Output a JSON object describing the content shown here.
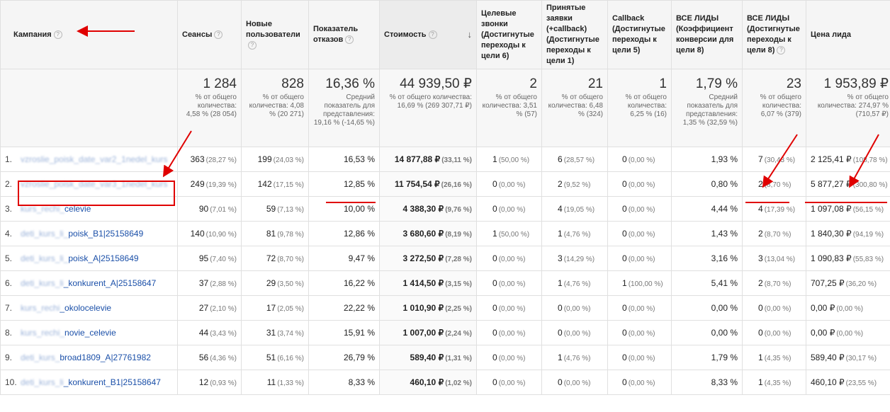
{
  "columns": [
    {
      "label": "Кампания",
      "help": "?"
    },
    {
      "label": "Сеансы",
      "help": "?"
    },
    {
      "label": "Новые пользователи",
      "help": "?"
    },
    {
      "label": "Показатель отказов",
      "help": "?"
    },
    {
      "label": "Стоимость",
      "help": "?"
    },
    {
      "label": "Целевые звонки (Достигнутые переходы к цели 6)",
      "help": "?"
    },
    {
      "label": "Принятые заявки (+callback) (Достигнутые переходы к цели 1)",
      "help": "?"
    },
    {
      "label": "Callback (Достигнутые переходы к цели 5)",
      "help": "?"
    },
    {
      "label": "ВСЕ ЛИДЫ (Коэффициент конверсии для цели 8)",
      "help": "?"
    },
    {
      "label": "ВСЕ ЛИДЫ (Достигнутые переходы к цели 8)",
      "help": "?"
    },
    {
      "label": "Цена лида",
      "help": ""
    }
  ],
  "sort_arrow": "↓",
  "totals": [
    {
      "value": "1 284",
      "sub": "% от общего количества: 4,58 % (28 054)"
    },
    {
      "value": "828",
      "sub": "% от общего количества: 4,08 % (20 271)"
    },
    {
      "value": "16,36 %",
      "sub": "Средний показатель для представления: 19,16 % (-14,65 %)"
    },
    {
      "value": "44 939,50 ₽",
      "sub": "% от общего количества: 16,69 % (269 307,71 ₽)"
    },
    {
      "value": "2",
      "sub": "% от общего количества: 3,51 % (57)"
    },
    {
      "value": "21",
      "sub": "% от общего количества: 6,48 % (324)"
    },
    {
      "value": "1",
      "sub": "% от общего количества: 6,25 % (16)"
    },
    {
      "value": "1,79 %",
      "sub": "Средний показатель для представления: 1,35 % (32,59 %)"
    },
    {
      "value": "23",
      "sub": "% от общего количества: 6,07 % (379)"
    },
    {
      "value": "1 953,89 ₽",
      "sub": "% от общего количества: 274,97 % (710,57 ₽)"
    }
  ],
  "rows": [
    {
      "n": "1.",
      "c1": "vzroslie_poisk_date_var2_1nedel_kurs",
      "c2": "",
      "s": "363",
      "sp": "(28,27 %)",
      "u": "199",
      "up": "(24,03 %)",
      "b": "16,53 %",
      "cost": "14 877,88 ₽",
      "cp": "(33,11 %)",
      "g6": "1",
      "g6p": "(50,00 %)",
      "g1": "6",
      "g1p": "(28,57 %)",
      "g5": "0",
      "g5p": "(0,00 %)",
      "cr": "1,93 %",
      "g8": "7",
      "g8p": "(30,43 %)",
      "price": "2 125,41 ₽",
      "pp": "(108,78 %)"
    },
    {
      "n": "2.",
      "c1": "vzroslie_poisk_date_var3_1nedel_kurs",
      "c2": "",
      "s": "249",
      "sp": "(19,39 %)",
      "u": "142",
      "up": "(17,15 %)",
      "b": "12,85 %",
      "cost": "11 754,54 ₽",
      "cp": "(26,16 %)",
      "g6": "0",
      "g6p": "(0,00 %)",
      "g1": "2",
      "g1p": "(9,52 %)",
      "g5": "0",
      "g5p": "(0,00 %)",
      "cr": "0,80 %",
      "g8": "2",
      "g8p": "(8,70 %)",
      "price": "5 877,27 ₽",
      "pp": "(300,80 %)"
    },
    {
      "n": "3.",
      "c1": "kurs_rechi_",
      "c2": "celevie",
      "s": "90",
      "sp": "(7,01 %)",
      "u": "59",
      "up": "(7,13 %)",
      "b": "10,00 %",
      "cost": "4 388,30 ₽",
      "cp": "(9,76 %)",
      "g6": "0",
      "g6p": "(0,00 %)",
      "g1": "4",
      "g1p": "(19,05 %)",
      "g5": "0",
      "g5p": "(0,00 %)",
      "cr": "4,44 %",
      "g8": "4",
      "g8p": "(17,39 %)",
      "price": "1 097,08 ₽",
      "pp": "(56,15 %)"
    },
    {
      "n": "4.",
      "c1": "deti_kurs_li_",
      "c2": "poisk_B1|25158649",
      "s": "140",
      "sp": "(10,90 %)",
      "u": "81",
      "up": "(9,78 %)",
      "b": "12,86 %",
      "cost": "3 680,60 ₽",
      "cp": "(8,19 %)",
      "g6": "1",
      "g6p": "(50,00 %)",
      "g1": "1",
      "g1p": "(4,76 %)",
      "g5": "0",
      "g5p": "(0,00 %)",
      "cr": "1,43 %",
      "g8": "2",
      "g8p": "(8,70 %)",
      "price": "1 840,30 ₽",
      "pp": "(94,19 %)"
    },
    {
      "n": "5.",
      "c1": "deti_kurs_li_",
      "c2": "poisk_A|25158649",
      "s": "95",
      "sp": "(7,40 %)",
      "u": "72",
      "up": "(8,70 %)",
      "b": "9,47 %",
      "cost": "3 272,50 ₽",
      "cp": "(7,28 %)",
      "g6": "0",
      "g6p": "(0,00 %)",
      "g1": "3",
      "g1p": "(14,29 %)",
      "g5": "0",
      "g5p": "(0,00 %)",
      "cr": "3,16 %",
      "g8": "3",
      "g8p": "(13,04 %)",
      "price": "1 090,83 ₽",
      "pp": "(55,83 %)"
    },
    {
      "n": "6.",
      "c1": "deti_kurs_li",
      "c2": "_konkurent_A|25158647",
      "s": "37",
      "sp": "(2,88 %)",
      "u": "29",
      "up": "(3,50 %)",
      "b": "16,22 %",
      "cost": "1 414,50 ₽",
      "cp": "(3,15 %)",
      "g6": "0",
      "g6p": "(0,00 %)",
      "g1": "1",
      "g1p": "(4,76 %)",
      "g5": "1",
      "g5p": "(100,00 %)",
      "cr": "5,41 %",
      "g8": "2",
      "g8p": "(8,70 %)",
      "price": "707,25 ₽",
      "pp": "(36,20 %)"
    },
    {
      "n": "7.",
      "c1": "kurs_rechi",
      "c2": "_okolocelevie",
      "s": "27",
      "sp": "(2,10 %)",
      "u": "17",
      "up": "(2,05 %)",
      "b": "22,22 %",
      "cost": "1 010,90 ₽",
      "cp": "(2,25 %)",
      "g6": "0",
      "g6p": "(0,00 %)",
      "g1": "0",
      "g1p": "(0,00 %)",
      "g5": "0",
      "g5p": "(0,00 %)",
      "cr": "0,00 %",
      "g8": "0",
      "g8p": "(0,00 %)",
      "price": "0,00 ₽",
      "pp": "(0,00 %)"
    },
    {
      "n": "8.",
      "c1": "kurs_rechi_",
      "c2": "novie_celevie",
      "s": "44",
      "sp": "(3,43 %)",
      "u": "31",
      "up": "(3,74 %)",
      "b": "15,91 %",
      "cost": "1 007,00 ₽",
      "cp": "(2,24 %)",
      "g6": "0",
      "g6p": "(0,00 %)",
      "g1": "0",
      "g1p": "(0,00 %)",
      "g5": "0",
      "g5p": "(0,00 %)",
      "cr": "0,00 %",
      "g8": "0",
      "g8p": "(0,00 %)",
      "price": "0,00 ₽",
      "pp": "(0,00 %)"
    },
    {
      "n": "9.",
      "c1": "deti_kurs_",
      "c2": "broad1809_A|27761982",
      "s": "56",
      "sp": "(4,36 %)",
      "u": "51",
      "up": "(6,16 %)",
      "b": "26,79 %",
      "cost": "589,40 ₽",
      "cp": "(1,31 %)",
      "g6": "0",
      "g6p": "(0,00 %)",
      "g1": "1",
      "g1p": "(4,76 %)",
      "g5": "0",
      "g5p": "(0,00 %)",
      "cr": "1,79 %",
      "g8": "1",
      "g8p": "(4,35 %)",
      "price": "589,40 ₽",
      "pp": "(30,17 %)"
    },
    {
      "n": "10.",
      "c1": "deti_kurs_li",
      "c2": "_konkurent_B1|25158647",
      "s": "12",
      "sp": "(0,93 %)",
      "u": "11",
      "up": "(1,33 %)",
      "b": "8,33 %",
      "cost": "460,10 ₽",
      "cp": "(1,02 %)",
      "g6": "0",
      "g6p": "(0,00 %)",
      "g1": "0",
      "g1p": "(0,00 %)",
      "g5": "0",
      "g5p": "(0,00 %)",
      "cr": "8,33 %",
      "g8": "1",
      "g8p": "(4,35 %)",
      "price": "460,10 ₽",
      "pp": "(23,55 %)"
    }
  ],
  "annotation_color": "#e00000"
}
